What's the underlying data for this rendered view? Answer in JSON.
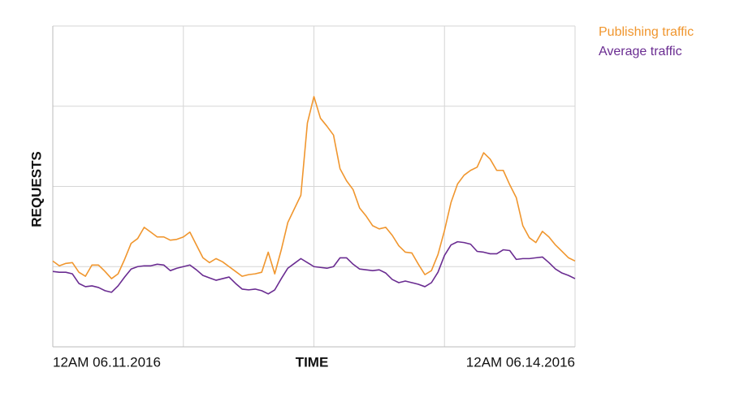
{
  "chart_data": {
    "type": "line",
    "x_label": "TIME",
    "y_label": "REQUESTS",
    "x": [
      0,
      1,
      2,
      3,
      4,
      5,
      6,
      7,
      8,
      9,
      10,
      11,
      12,
      13,
      14,
      15,
      16,
      17,
      18,
      19,
      20,
      21,
      22,
      23,
      24,
      25,
      26,
      27,
      28,
      29,
      30,
      31,
      32,
      33,
      34,
      35,
      36,
      37,
      38,
      39,
      40,
      41,
      42,
      43,
      44,
      45,
      46,
      47,
      48,
      49,
      50,
      51,
      52,
      53,
      54,
      55,
      56,
      57,
      58,
      59,
      60,
      61,
      62,
      63,
      64,
      65,
      66,
      67,
      68,
      69,
      70,
      71,
      72,
      73,
      74,
      75,
      76,
      77,
      78,
      79,
      80
    ],
    "series": [
      {
        "name": "Publishing traffic",
        "color": "#f0962e",
        "values": [
          107,
          101,
          104,
          105,
          93,
          88,
          102,
          102,
          94,
          85,
          91,
          109,
          129,
          135,
          149,
          143,
          137,
          137,
          133,
          134,
          137,
          143,
          127,
          111,
          105,
          110,
          106,
          100,
          94,
          88,
          90,
          91,
          93,
          118,
          91,
          121,
          155,
          172,
          189,
          279,
          312,
          285,
          275,
          264,
          222,
          207,
          196,
          173,
          163,
          151,
          147,
          149,
          139,
          126,
          118,
          117,
          103,
          90,
          95,
          115,
          145,
          180,
          203,
          214,
          220,
          224,
          242,
          234,
          220,
          220,
          202,
          186,
          151,
          136,
          130,
          144,
          137,
          127,
          119,
          111,
          107
        ]
      },
      {
        "name": "Average traffic",
        "color": "#6a2c91",
        "values": [
          94,
          93,
          93,
          91,
          79,
          75,
          76,
          74,
          70,
          68,
          76,
          87,
          97,
          100,
          101,
          101,
          103,
          102,
          95,
          98,
          100,
          102,
          96,
          89,
          86,
          83,
          85,
          87,
          79,
          72,
          71,
          72,
          70,
          66,
          71,
          85,
          98,
          104,
          110,
          105,
          100,
          99,
          98,
          100,
          111,
          111,
          103,
          97,
          96,
          95,
          96,
          92,
          84,
          80,
          82,
          80,
          78,
          75,
          80,
          93,
          114,
          127,
          131,
          130,
          128,
          119,
          118,
          116,
          116,
          121,
          120,
          109,
          110,
          110,
          111,
          112,
          105,
          97,
          92,
          89,
          85
        ]
      }
    ],
    "xlim": [
      0,
      80
    ],
    "xticks": [
      {
        "value": 0,
        "label": "12AM 06.11.2016"
      },
      20,
      40,
      60,
      {
        "value": 80,
        "label": "12AM 06.14.2016"
      }
    ],
    "ylim": [
      0,
      400
    ],
    "yticks": [
      0,
      100,
      200,
      300,
      400
    ],
    "grid": true,
    "legend": "top-right"
  }
}
